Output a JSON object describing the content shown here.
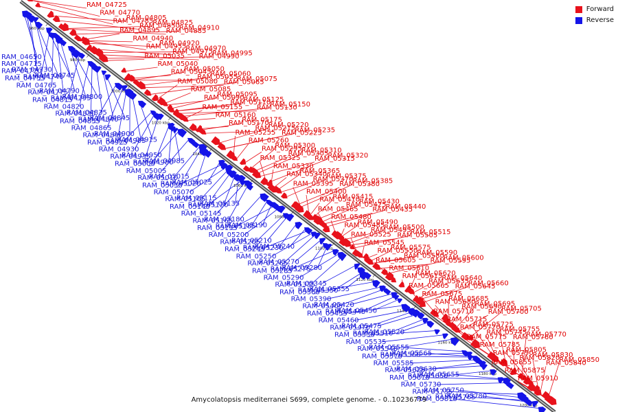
{
  "caption": "Amycolatopsis mediterranei S699, complete genome. - 0..10236779",
  "legend": [
    {
      "label": "Forward",
      "color": "#e8121c"
    },
    {
      "label": "Reverse",
      "color": "#1414e8"
    }
  ],
  "colors": {
    "forward": "#e8121c",
    "reverse": "#1414e8",
    "backbone": "#555555"
  },
  "ticks": [
    "960 kbp",
    "980 kbp",
    "1000 kbp",
    "1020 kbp",
    "1040 kbp",
    "1060 kbp",
    "1080 kbp",
    "1100 kbp",
    "1120 kbp",
    "1140 kbp",
    "1160 kbp",
    "1180 kbp",
    "1200 kbp"
  ],
  "forward_genes": [
    "RAM_04725",
    "RAM_04770",
    "RAM_04785",
    "RAM_04805",
    "RAM_04850",
    "RAM_04825",
    "RAM_04885",
    "RAM_04910",
    "RAM_04895",
    "RAM_04940",
    "RAM_04955",
    "RAM_04920",
    "RAM_04975",
    "RAM_04970",
    "RAM_04990",
    "RAM_04995",
    "RAM_05035",
    "RAM_05040",
    "RAM_05045",
    "RAM_05050",
    "RAM_05055",
    "RAM_05060",
    "RAM_05065",
    "RAM_05075",
    "RAM_05080",
    "RAM_05085",
    "RAM_05090",
    "RAM_05095",
    "RAM_05110",
    "RAM_05125",
    "RAM_05130",
    "RAM_05150",
    "RAM_05155",
    "RAM_05160",
    "RAM_05170",
    "RAM_05175",
    "RAM_05215",
    "RAM_05220",
    "RAM_05225",
    "RAM_05235",
    "RAM_05255",
    "RAM_05260",
    "RAM_05295",
    "RAM_05300",
    "RAM_05305",
    "RAM_05310",
    "RAM_05315",
    "RAM_05320",
    "RAM_05325",
    "RAM_05330",
    "RAM_05340",
    "RAM_05365",
    "RAM_05370",
    "RAM_05375",
    "RAM_05380",
    "RAM_05385",
    "RAM_05395",
    "RAM_05400",
    "RAM_05410",
    "RAM_05415",
    "RAM_05425",
    "RAM_05430",
    "RAM_05435",
    "RAM_05440",
    "RAM_05465",
    "RAM_05480",
    "RAM_05485",
    "RAM_05490",
    "RAM_05495",
    "RAM_05500",
    "RAM_05505",
    "RAM_05515",
    "RAM_05525",
    "RAM_05545",
    "RAM_05550",
    "RAM_05575",
    "RAM_05580",
    "RAM_05590",
    "RAM_05595",
    "RAM_05600",
    "RAM_05605",
    "RAM_05610",
    "RAM_05615",
    "RAM_05620",
    "RAM_05635",
    "RAM_05640",
    "RAM_05645",
    "RAM_05660",
    "RAM_05665",
    "RAM_05675",
    "RAM_05680",
    "RAM_05685",
    "RAM_05690",
    "RAM_05695",
    "RAM_05700",
    "RAM_05705",
    "RAM_05710",
    "RAM_05715",
    "RAM_05720",
    "RAM_05725",
    "RAM_05745",
    "RAM_05755",
    "RAM_05760",
    "RAM_05770",
    "RAM_05775",
    "RAM_05785",
    "RAM_05790",
    "RAM_05805",
    "RAM_05820",
    "RAM_05830",
    "RAM_05840",
    "RAM_05850",
    "RAM_05855",
    "RAM_05875",
    "RAM_05910"
  ],
  "reverse_genes": [
    "RAM_04650",
    "RAM_04715",
    "RAM_04720",
    "RAM_04730",
    "RAM_04740",
    "RAM_04745",
    "RAM_04755",
    "RAM_04765",
    "RAM_04775",
    "RAM_04790",
    "RAM_04795",
    "RAM_04800",
    "RAM_04815",
    "RAM_04820",
    "RAM_04830",
    "RAM_04835",
    "RAM_04840",
    "RAM_04845",
    "RAM_04855",
    "RAM_04865",
    "RAM_04890",
    "RAM_04900",
    "RAM_04905",
    "RAM_04915",
    "RAM_04925",
    "RAM_04930",
    "RAM_04935",
    "RAM_04950",
    "RAM_04980",
    "RAM_04985",
    "RAM_05000",
    "RAM_05005",
    "RAM_05010",
    "RAM_05015",
    "RAM_05020",
    "RAM_05025",
    "RAM_05030",
    "RAM_05070",
    "RAM_05105",
    "RAM_05115",
    "RAM_05120",
    "RAM_05135",
    "RAM_05140",
    "RAM_05145",
    "RAM_05165",
    "RAM_05180",
    "RAM_05185",
    "RAM_05190",
    "RAM_05195",
    "RAM_05200",
    "RAM_05205",
    "RAM_05210",
    "RAM_05230",
    "RAM_05240",
    "RAM_05245",
    "RAM_05250",
    "RAM_05265",
    "RAM_05270",
    "RAM_05275",
    "RAM_05280",
    "RAM_05285",
    "RAM_05290",
    "RAM_05335",
    "RAM_05345",
    "RAM_05350",
    "RAM_05355",
    "RAM_05360",
    "RAM_05390",
    "RAM_05405",
    "RAM_05420",
    "RAM_05445",
    "RAM_05450",
    "RAM_05455",
    "RAM_05460",
    "RAM_05470",
    "RAM_05475",
    "RAM_05510",
    "RAM_05520",
    "RAM_05530",
    "RAM_05535",
    "RAM_05540",
    "RAM_05555",
    "RAM_05560",
    "RAM_05565",
    "RAM_05570",
    "RAM_05585",
    "RAM_05625",
    "RAM_05630",
    "RAM_05650",
    "RAM_05655",
    "RAM_05670",
    "RAM_05730",
    "RAM_05735",
    "RAM_05750",
    "RAM_05765",
    "RAM_05780",
    "RAM_05810"
  ]
}
